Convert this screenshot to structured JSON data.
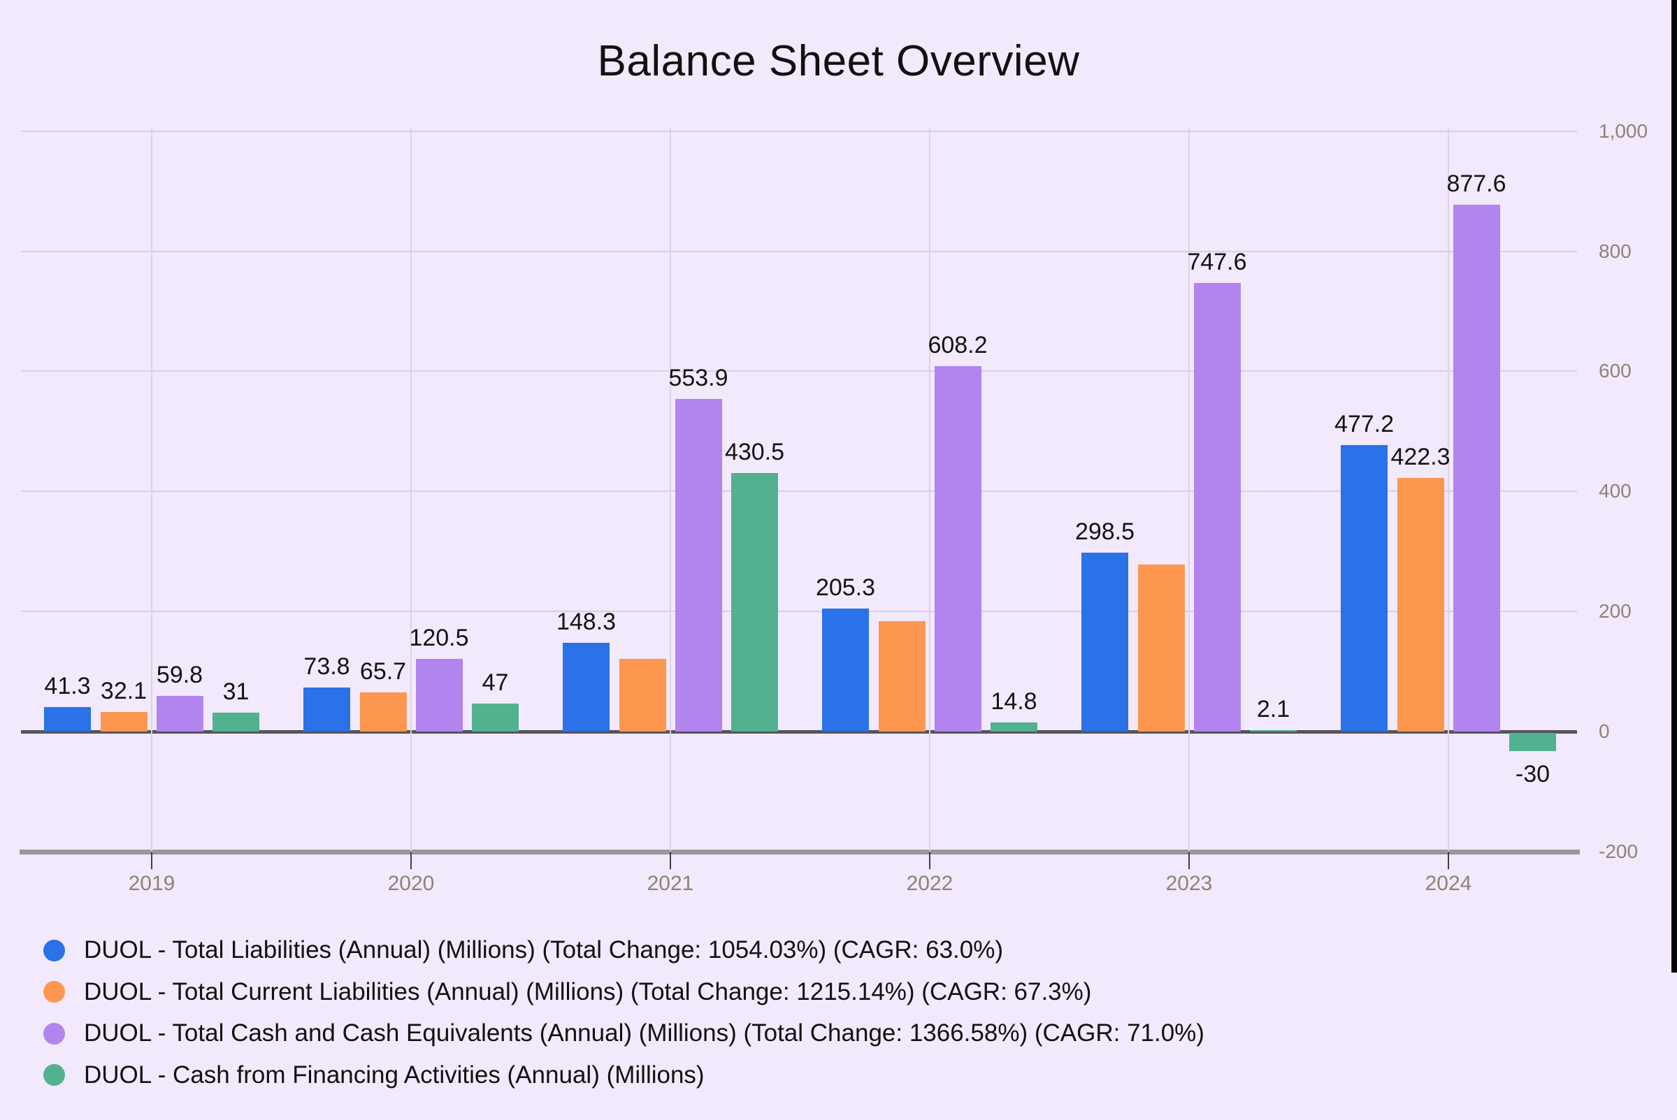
{
  "title": "Balance Sheet Overview",
  "background_color": "#f3e9fc",
  "chart_data": {
    "type": "bar",
    "title": "Balance Sheet Overview",
    "categories": [
      "2019",
      "2020",
      "2021",
      "2022",
      "2023",
      "2024"
    ],
    "series": [
      {
        "name": "DUOL - Total Liabilities (Annual) (Millions) (Total Change: 1054.03%) (CAGR: 63.0%)",
        "color": "#2b71e8",
        "values": [
          41.3,
          73.8,
          148.3,
          205.3,
          298.5,
          477.2
        ],
        "labels": [
          "41.3",
          "73.8",
          "148.3",
          "205.3",
          "298.5",
          "477.2"
        ]
      },
      {
        "name": "DUOL - Total Current Liabilities (Annual) (Millions) (Total Change: 1215.14%) (CAGR: 67.3%)",
        "color": "#fd9750",
        "values": [
          32.1,
          65.7,
          121,
          184,
          278,
          422.3
        ],
        "labels": [
          "32.1",
          "65.7",
          null,
          null,
          null,
          "422.3"
        ]
      },
      {
        "name": "DUOL - Total Cash and Cash Equivalents (Annual) (Millions) (Total Change: 1366.58%) (CAGR: 71.0%)",
        "color": "#b284ee",
        "values": [
          59.8,
          120.5,
          553.9,
          608.2,
          747.6,
          877.6
        ],
        "labels": [
          "59.8",
          "120.5",
          "553.9",
          "608.2",
          "747.6",
          "877.6"
        ]
      },
      {
        "name": "DUOL - Cash from Financing Activities (Annual) (Millions)",
        "color": "#52b18f",
        "values": [
          31,
          47,
          430.5,
          14.8,
          2.1,
          -30
        ],
        "labels": [
          "31",
          "47",
          "430.5",
          "14.8",
          "2.1",
          "-30"
        ]
      }
    ],
    "y_axis": {
      "ticks": [
        {
          "label": "1,000",
          "value": 1000
        },
        {
          "label": "800",
          "value": 800
        },
        {
          "label": "600",
          "value": 600
        },
        {
          "label": "400",
          "value": 400
        },
        {
          "label": "200",
          "value": 200
        },
        {
          "label": "0",
          "value": 0
        },
        {
          "label": "-200",
          "value": -200
        }
      ],
      "range": [
        -200,
        1000
      ],
      "side": "right"
    },
    "grid": true,
    "legend_position": "bottom-left"
  }
}
